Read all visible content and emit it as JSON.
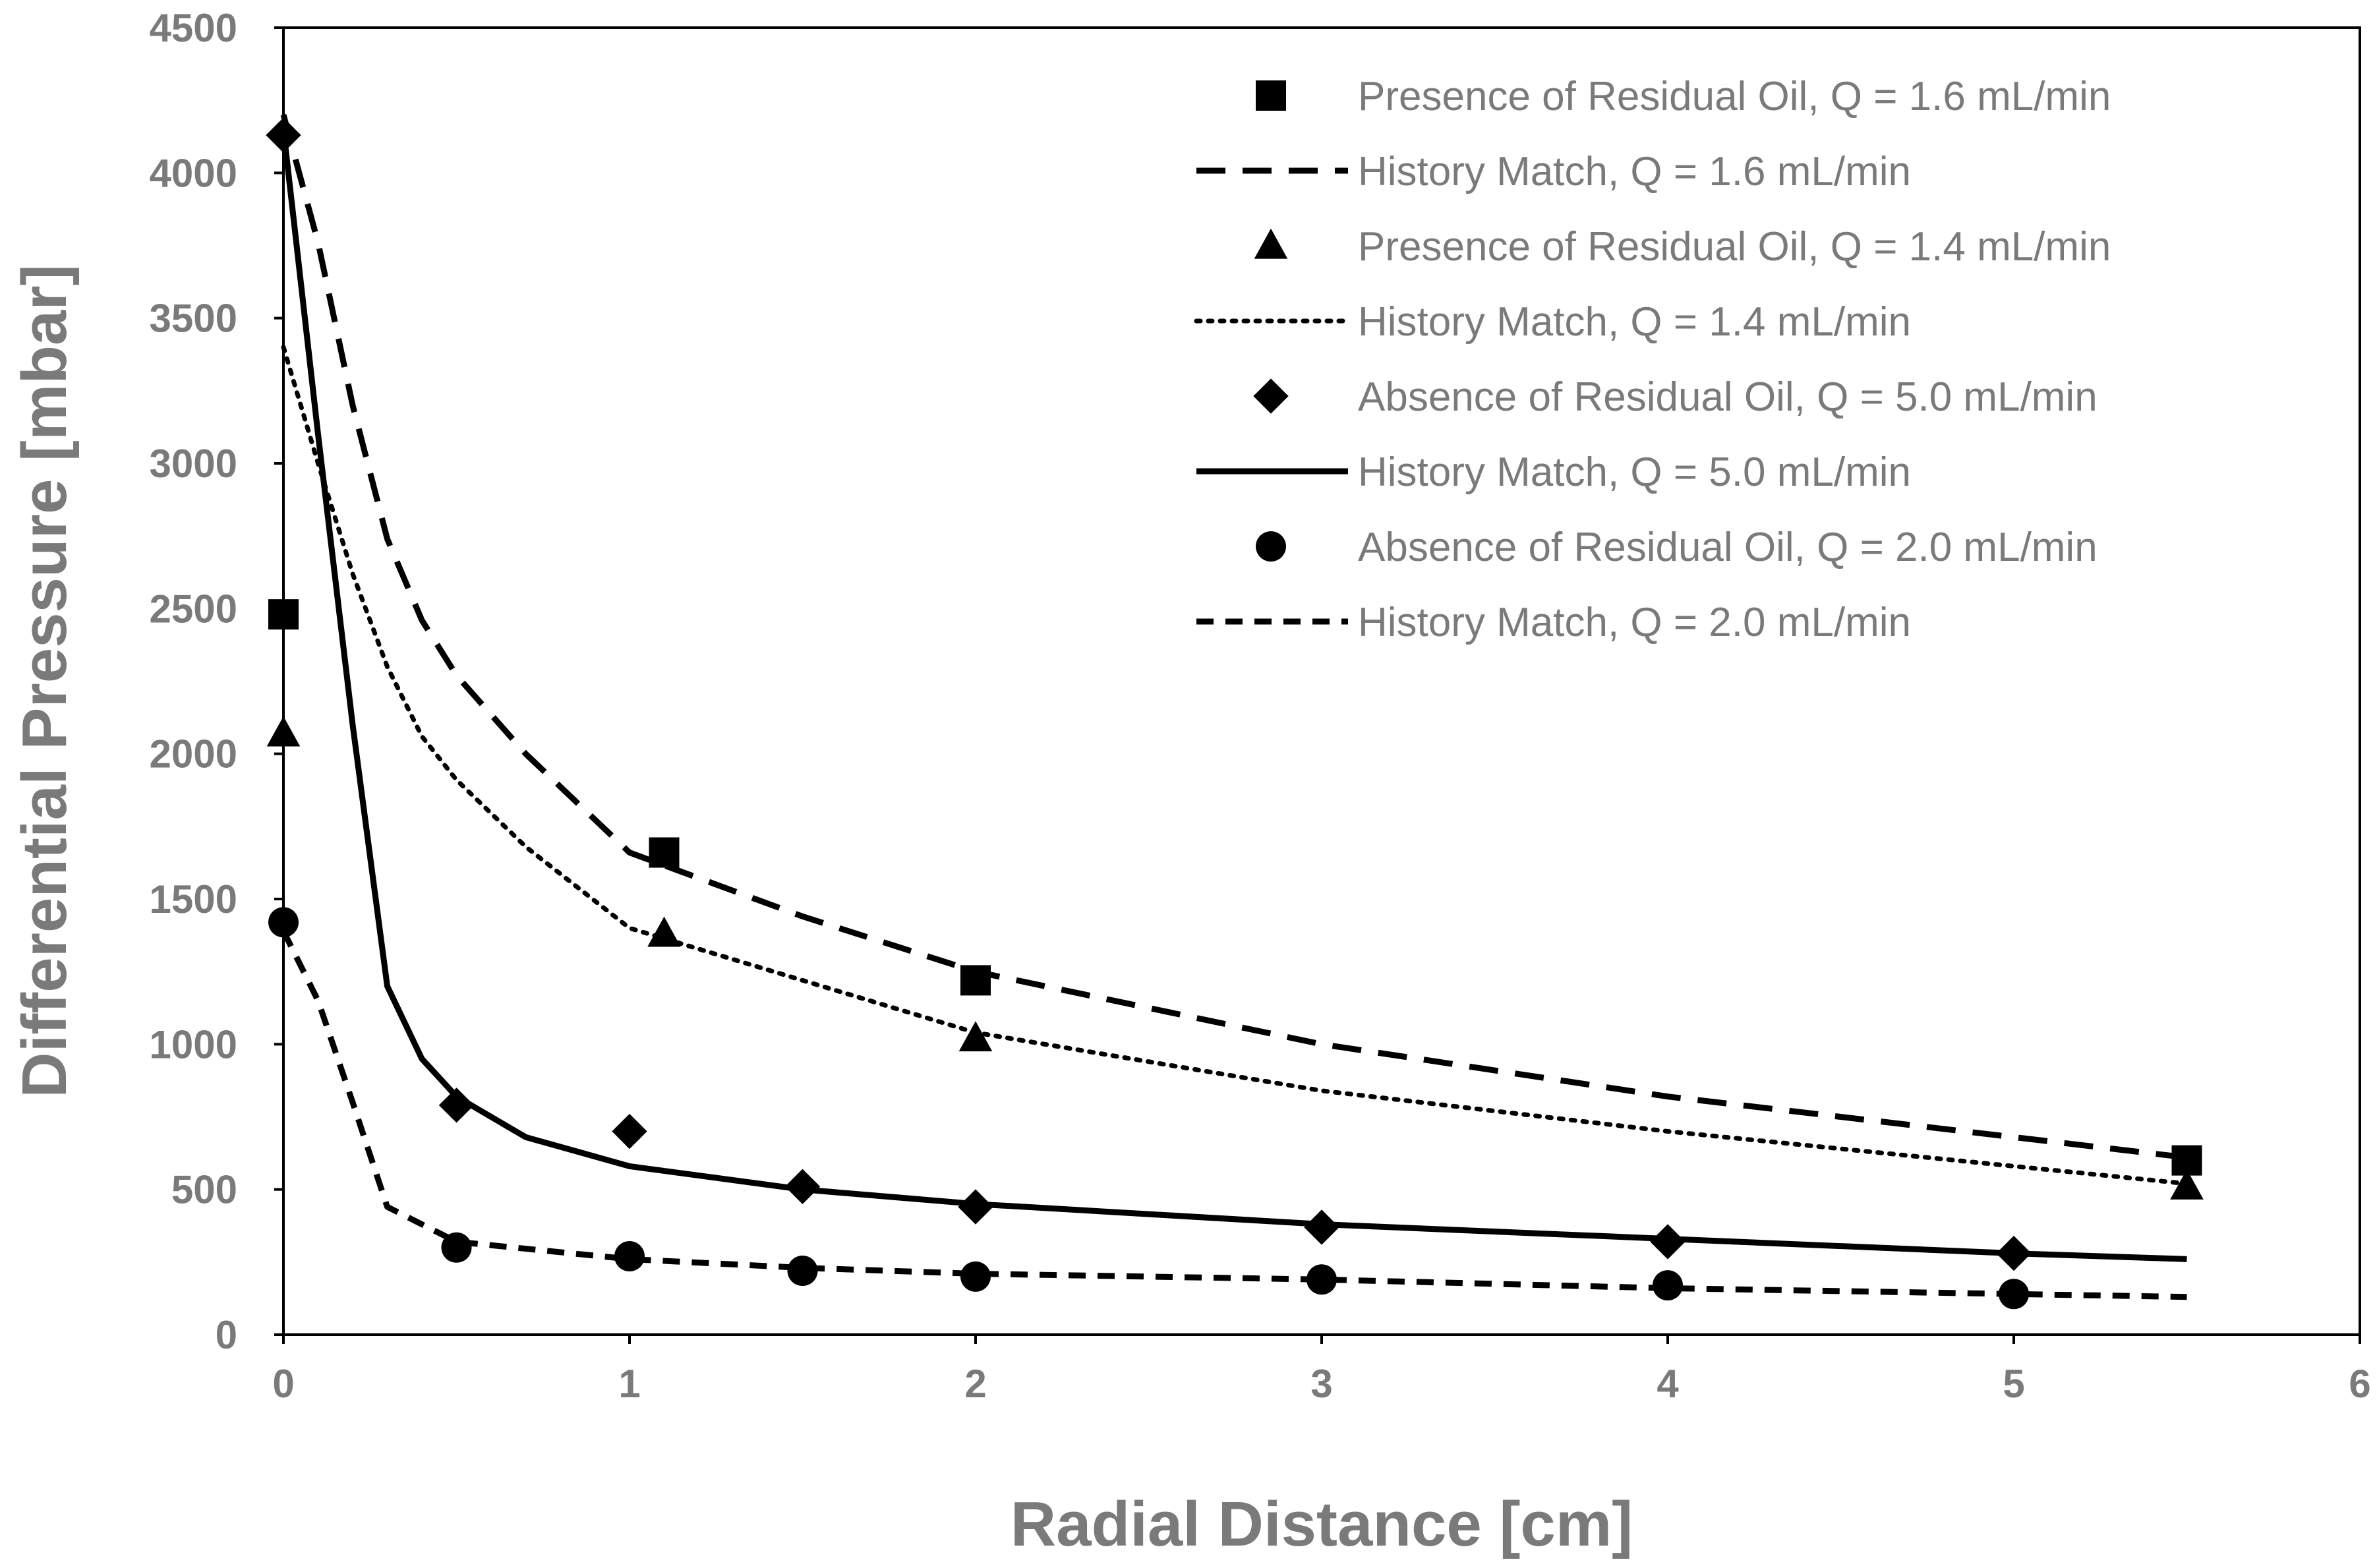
{
  "chart_data": {
    "type": "scatter",
    "title": "",
    "xlabel": "Radial Distance [cm]",
    "ylabel": "Differential Pressure [mbar]",
    "xlim": [
      0,
      6
    ],
    "ylim": [
      0,
      4500
    ],
    "xticks": [
      0,
      1,
      2,
      3,
      4,
      5,
      6
    ],
    "yticks": [
      0,
      500,
      1000,
      1500,
      2000,
      2500,
      3000,
      3500,
      4000,
      4500
    ],
    "grid": false,
    "legend_position": "top-right",
    "series": [
      {
        "name": "Presence of Residual Oil, Q = 1.6 mL/min",
        "kind": "marker",
        "marker": "square",
        "x": [
          0,
          1.1,
          2,
          5.5
        ],
        "y": [
          2480,
          1660,
          1220,
          600
        ]
      },
      {
        "name": "History Match, Q = 1.6 mL/min",
        "kind": "line",
        "dash": "long-dash",
        "x": [
          0,
          0.1,
          0.2,
          0.3,
          0.4,
          0.5,
          0.7,
          1.0,
          1.5,
          2.0,
          3.0,
          4.0,
          5.0,
          5.5
        ],
        "y": [
          4200,
          3760,
          3200,
          2740,
          2460,
          2270,
          2000,
          1660,
          1440,
          1250,
          1000,
          820,
          680,
          610
        ]
      },
      {
        "name": "Presence of Residual Oil, Q = 1.4 mL/min",
        "kind": "marker",
        "marker": "triangle",
        "x": [
          0,
          1.1,
          2,
          5.5
        ],
        "y": [
          2070,
          1380,
          1020,
          510
        ]
      },
      {
        "name": "History Match, Q = 1.4 mL/min",
        "kind": "line",
        "dash": "dotted",
        "x": [
          0,
          0.1,
          0.2,
          0.3,
          0.4,
          0.5,
          0.7,
          1.0,
          1.5,
          2.0,
          3.0,
          4.0,
          5.0,
          5.5
        ],
        "y": [
          3400,
          3000,
          2620,
          2300,
          2060,
          1910,
          1680,
          1400,
          1220,
          1040,
          840,
          700,
          580,
          520
        ]
      },
      {
        "name": "Absence of Residual Oil, Q = 5.0 mL/min",
        "kind": "marker",
        "marker": "diamond",
        "x": [
          0,
          0.5,
          1,
          1.5,
          2,
          3,
          4,
          5
        ],
        "y": [
          4130,
          790,
          700,
          510,
          440,
          370,
          320,
          280
        ]
      },
      {
        "name": "History Match, Q = 5.0 mL/min",
        "kind": "line",
        "dash": "solid",
        "x": [
          0,
          0.1,
          0.2,
          0.3,
          0.4,
          0.5,
          0.7,
          1.0,
          1.5,
          2.0,
          3.0,
          4.0,
          5.0,
          5.5
        ],
        "y": [
          4150,
          3100,
          2100,
          1200,
          950,
          820,
          680,
          580,
          500,
          450,
          380,
          330,
          280,
          260
        ]
      },
      {
        "name": "Absence of Residual Oil, Q = 2.0 mL/min",
        "kind": "marker",
        "marker": "circle",
        "x": [
          0,
          0.5,
          1,
          1.5,
          2,
          3,
          4,
          5
        ],
        "y": [
          1420,
          300,
          270,
          220,
          200,
          190,
          170,
          140
        ]
      },
      {
        "name": "History Match, Q = 2.0 mL/min",
        "kind": "line",
        "dash": "short-dash",
        "x": [
          0,
          0.1,
          0.2,
          0.3,
          0.5,
          1.0,
          1.5,
          2.0,
          3.0,
          4.0,
          5.0,
          5.5
        ],
        "y": [
          1390,
          1150,
          800,
          440,
          320,
          260,
          230,
          210,
          190,
          160,
          140,
          130
        ]
      }
    ]
  }
}
